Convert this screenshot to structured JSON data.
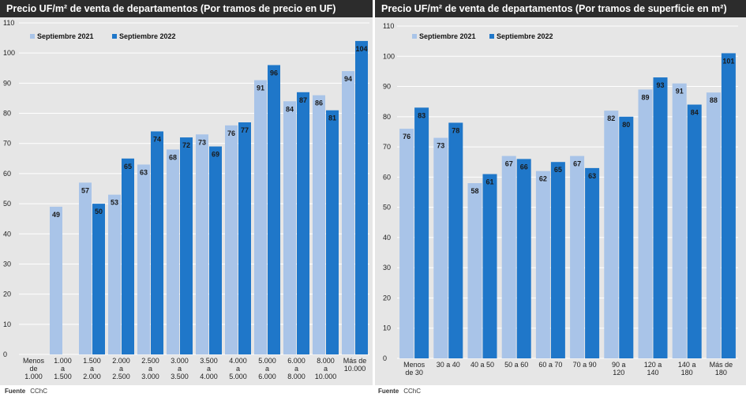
{
  "chart_data": [
    {
      "type": "bar",
      "title": "Precio UF/m² de venta de departamentos (Por tramos de precio en UF)",
      "xlabel": "",
      "ylabel": "",
      "ylim": [
        0,
        110
      ],
      "yticks": [
        0,
        10,
        20,
        30,
        40,
        50,
        60,
        70,
        80,
        90,
        100,
        110
      ],
      "legend_position": "top-left",
      "grid": true,
      "categories": [
        "Menos de 1.000",
        "1.000 a 1.500",
        "1.500 a 2.000",
        "2.000 a 2.500",
        "2.500 a 3.000",
        "3.000 a 3.500",
        "3.500 a 4.000",
        "4.000 a 5.000",
        "5.000 a 6.000",
        "6.000 a 8.000",
        "8.000 a 10.000",
        "Más de 10.000"
      ],
      "series": [
        {
          "name": "Septiembre 2021",
          "color": "#a9c4e8",
          "values": [
            null,
            49,
            57,
            53,
            63,
            68,
            73,
            76,
            91,
            84,
            86,
            94
          ]
        },
        {
          "name": "Septiembre 2022",
          "color": "#1f77c9",
          "values": [
            null,
            null,
            50,
            65,
            74,
            72,
            69,
            77,
            96,
            87,
            81,
            104
          ]
        }
      ],
      "source_label": "Fuente",
      "source": "CChC"
    },
    {
      "type": "bar",
      "title": "Precio UF/m² de venta de departamentos (Por tramos de superficie en m²)",
      "xlabel": "",
      "ylabel": "",
      "ylim": [
        0,
        110
      ],
      "yticks": [
        0,
        10,
        20,
        30,
        40,
        50,
        60,
        70,
        80,
        90,
        100,
        110
      ],
      "legend_position": "top-left",
      "grid": true,
      "categories": [
        "Menos de 30",
        "30 a 40",
        "40 a 50",
        "50 a 60",
        "60 a 70",
        "70 a 90",
        "90 a 120",
        "120 a 140",
        "140 a 180",
        "Más de 180"
      ],
      "series": [
        {
          "name": "Septiembre 2021",
          "color": "#a9c4e8",
          "values": [
            76,
            73,
            58,
            67,
            62,
            67,
            82,
            89,
            91,
            88
          ]
        },
        {
          "name": "Septiembre 2022",
          "color": "#1f77c9",
          "values": [
            83,
            78,
            61,
            66,
            65,
            63,
            80,
            93,
            84,
            101
          ]
        }
      ],
      "source_label": "Fuente",
      "source": "CChC"
    }
  ]
}
